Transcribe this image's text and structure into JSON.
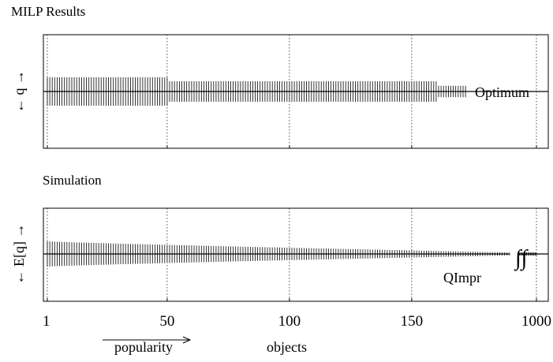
{
  "chart_data": [
    {
      "type": "bar",
      "title": "MILP Results",
      "ylabel": "← q →",
      "annotation": "Optimum",
      "x_ticks": [
        "1",
        "50",
        "100",
        "150",
        "1000"
      ],
      "tick_values": [
        1,
        50,
        100,
        150,
        1000
      ],
      "grid": true,
      "segments": [
        {
          "from": 1,
          "to": 50,
          "value": 1.0
        },
        {
          "from": 51,
          "to": 160,
          "value": 0.72
        },
        {
          "from": 161,
          "to": 172,
          "value": 0.4
        }
      ],
      "ylim": [
        -1.4,
        1.4
      ],
      "xlim_display": [
        0,
        201
      ]
    },
    {
      "type": "bar",
      "title": "Simulation",
      "ylabel": "← E[q] →",
      "annotation": "QImpr",
      "break_symbol": "∫∫",
      "x_ticks": [
        "1",
        "50",
        "100",
        "150",
        "1000"
      ],
      "tick_values": [
        1,
        50,
        100,
        150,
        1000
      ],
      "xlabel": "objects",
      "popularity_label": "popularity",
      "grid": true,
      "profile": {
        "start": 1.0,
        "end": 0.12,
        "from": 1,
        "to": 190,
        "tail_from": 190,
        "tail_to": 201
      },
      "ylim": [
        -1.4,
        1.4
      ],
      "xlim_display": [
        0,
        201
      ]
    }
  ]
}
